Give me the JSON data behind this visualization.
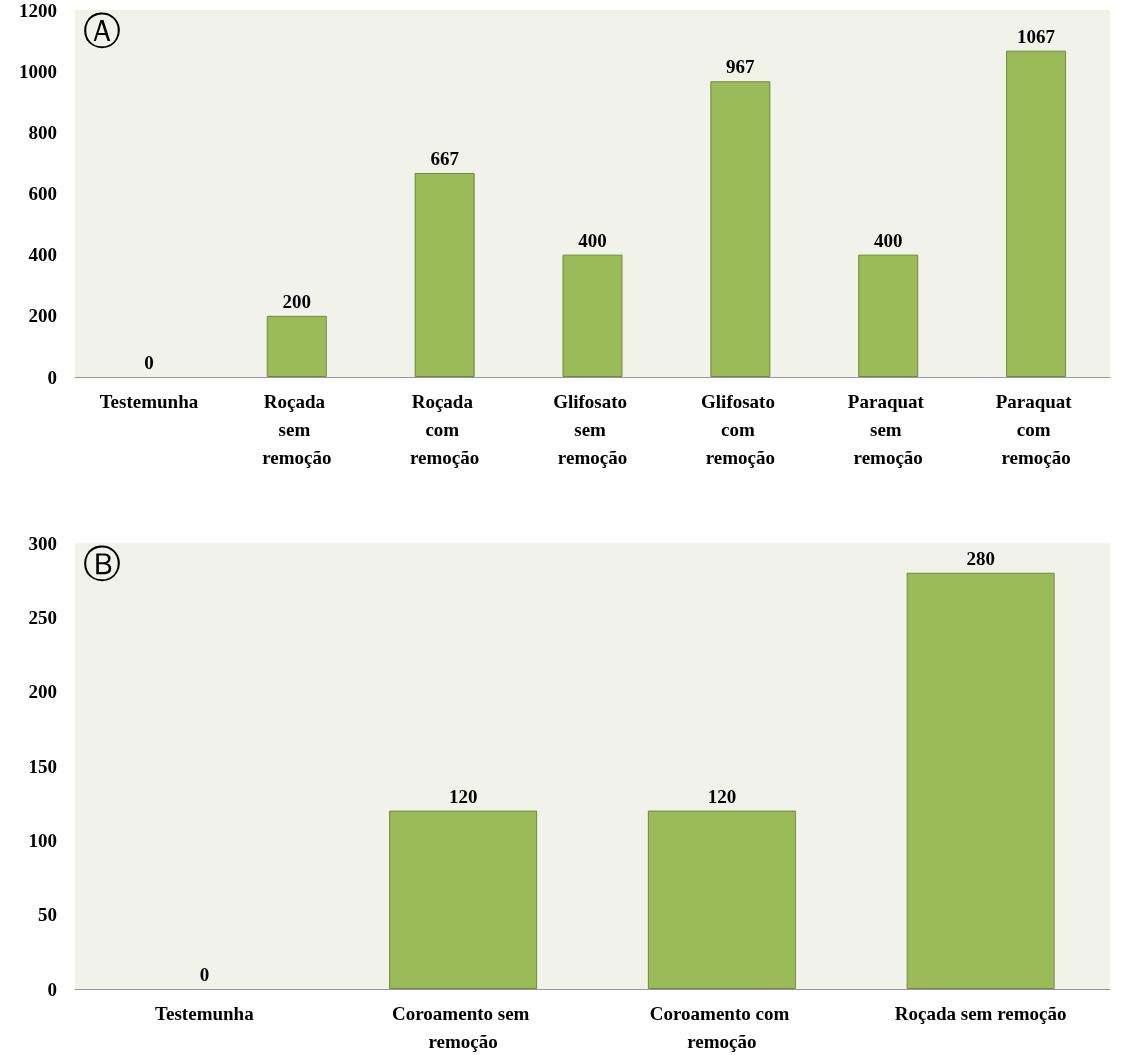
{
  "chart_data": [
    {
      "type": "bar",
      "annotations": [
        "Ⓐ"
      ],
      "categories": [
        "Testemunha",
        "Roçada sem remoção",
        "Roçada com remoção",
        "Glifosato sem remoção",
        "Glifosato com remoção",
        "Paraquat sem remoção",
        "Paraquat com remoção"
      ],
      "values": [
        0,
        200,
        667,
        400,
        967,
        400,
        1067
      ],
      "color": "#9bbb59",
      "ylim": [
        0,
        1200
      ],
      "yticks": [
        0,
        200,
        400,
        600,
        800,
        1000,
        1200
      ],
      "data_labels": true,
      "grid": false
    },
    {
      "type": "bar",
      "annotations": [
        "Ⓑ"
      ],
      "categories": [
        "Testemunha",
        "Coroamento sem remoção",
        "Coroamento com remoção",
        "Roçada sem remoção"
      ],
      "values": [
        0,
        120,
        120,
        280
      ],
      "color": "#9bbb59",
      "ylim": [
        0,
        300
      ],
      "yticks": [
        0,
        50,
        100,
        150,
        200,
        250,
        300
      ],
      "data_labels": true,
      "grid": false
    }
  ]
}
